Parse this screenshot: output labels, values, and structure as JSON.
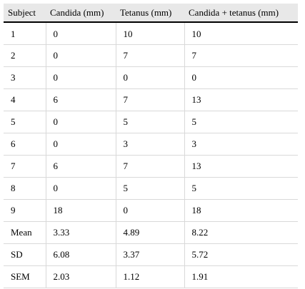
{
  "table": {
    "headers": [
      "Subject",
      "Candida (mm)",
      "Tetanus (mm)",
      "Candida + tetanus (mm)"
    ],
    "rows": [
      [
        "1",
        "0",
        "10",
        "10"
      ],
      [
        "2",
        "0",
        "7",
        "7"
      ],
      [
        "3",
        "0",
        "0",
        "0"
      ],
      [
        "4",
        "6",
        "7",
        "13"
      ],
      [
        "5",
        "0",
        "5",
        "5"
      ],
      [
        "6",
        "0",
        "3",
        "3"
      ],
      [
        "7",
        "6",
        "7",
        "13"
      ],
      [
        "8",
        "0",
        "5",
        "5"
      ],
      [
        "9",
        "18",
        "0",
        "18"
      ],
      [
        "Mean",
        "3.33",
        "4.89",
        "8.22"
      ],
      [
        "SD",
        "6.08",
        "3.37",
        "5.72"
      ],
      [
        "SEM",
        "2.03",
        "1.12",
        "1.91"
      ]
    ]
  }
}
